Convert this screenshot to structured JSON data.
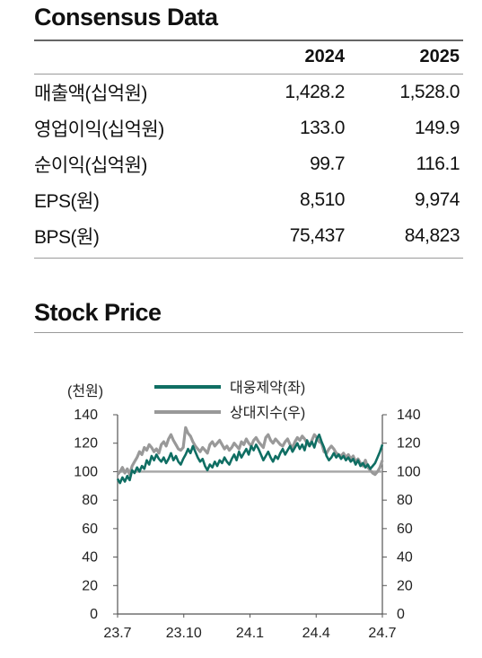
{
  "consensus": {
    "title": "Consensus Data",
    "headers": [
      "",
      "2024",
      "2025"
    ],
    "rows": [
      {
        "label": "매출액(십억원)",
        "y2024": "1,428.2",
        "y2025": "1,528.0"
      },
      {
        "label": "영업이익(십억원)",
        "y2024": "133.0",
        "y2025": "149.9"
      },
      {
        "label": "순이익(십억원)",
        "y2024": "99.7",
        "y2025": "116.1"
      },
      {
        "label": "EPS(원)",
        "y2024": "8,510",
        "y2025": "9,974"
      },
      {
        "label": "BPS(원)",
        "y2024": "75,437",
        "y2025": "84,823"
      }
    ]
  },
  "stock": {
    "title": "Stock Price"
  },
  "chart_data": {
    "type": "line",
    "unit_label": "(천원)",
    "x_tick_labels": [
      "23.7",
      "23.10",
      "24.1",
      "24.4",
      "24.7"
    ],
    "ylim": [
      0,
      140
    ],
    "y_ticks_left": [
      0,
      20,
      40,
      60,
      80,
      100,
      120,
      140
    ],
    "y_ticks_right": [
      0,
      20,
      40,
      60,
      80,
      100,
      120,
      140
    ],
    "reference_line": 100,
    "legend_placement": "top-center",
    "series": [
      {
        "name": "대웅제약(좌)",
        "color": "#0f6e63",
        "values": [
          95,
          92,
          96,
          93,
          97,
          94,
          101,
          99,
          103,
          100,
          104,
          102,
          108,
          105,
          111,
          108,
          112,
          109,
          107,
          110,
          106,
          109,
          113,
          108,
          111,
          107,
          105,
          109,
          112,
          116,
          113,
          118,
          114,
          110,
          107,
          109,
          104,
          101,
          105,
          103,
          107,
          104,
          108,
          106,
          110,
          107,
          105,
          109,
          112,
          108,
          114,
          110,
          113,
          116,
          112,
          118,
          115,
          119,
          116,
          112,
          108,
          111,
          114,
          110,
          107,
          111,
          109,
          113,
          116,
          112,
          115,
          118,
          114,
          117,
          120,
          116,
          119,
          115,
          122,
          118,
          121,
          117,
          123,
          126,
          121,
          117,
          111,
          108,
          110,
          113,
          110,
          112,
          109,
          111,
          108,
          110,
          107,
          109,
          105,
          108,
          104,
          106,
          103,
          105,
          102,
          104,
          106,
          110,
          114,
          119
        ],
        "x_start_label": "23.7"
      },
      {
        "name": "상대지수(우)",
        "color": "#999999",
        "values": [
          98,
          100,
          103,
          99,
          102,
          98,
          104,
          107,
          110,
          114,
          112,
          117,
          115,
          119,
          117,
          114,
          116,
          113,
          119,
          121,
          118,
          123,
          126,
          122,
          119,
          116,
          115,
          117,
          131,
          127,
          125,
          121,
          118,
          116,
          114,
          117,
          115,
          113,
          119,
          121,
          118,
          120,
          122,
          119,
          116,
          118,
          115,
          117,
          120,
          118,
          116,
          121,
          119,
          123,
          120,
          118,
          122,
          124,
          121,
          119,
          117,
          124,
          126,
          122,
          120,
          123,
          121,
          119,
          118,
          121,
          123,
          119,
          117,
          121,
          124,
          122,
          125,
          123,
          120,
          118,
          122,
          126,
          124,
          121,
          120,
          114,
          113,
          116,
          118,
          116,
          113,
          112,
          111,
          113,
          110,
          112,
          109,
          111,
          107,
          109,
          106,
          104,
          108,
          103,
          101,
          99,
          98,
          100,
          103,
          108
        ],
        "x_start_label": "23.7"
      }
    ]
  }
}
